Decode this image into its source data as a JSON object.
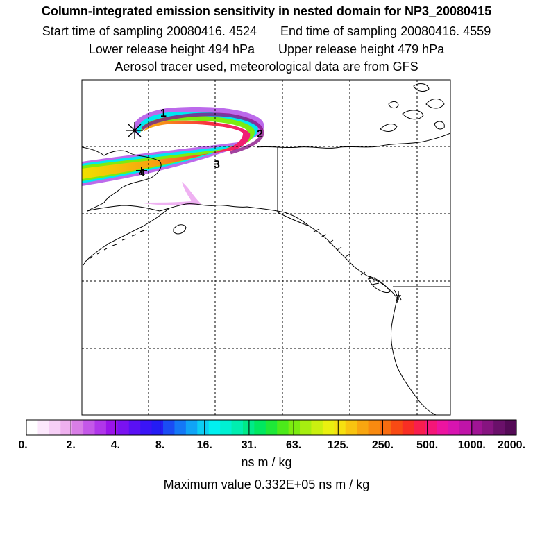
{
  "header": {
    "title": "Column-integrated emission sensitivity in nested domain for NP3_20080415",
    "start_label": "Start time of sampling 20080416.  4524",
    "end_label": "End time of sampling 20080416.  4559",
    "lower_label": "Lower release height  494 hPa",
    "upper_label": "Upper release height  479 hPa",
    "tracer_label": "Aerosol tracer used, meteorological data are from GFS"
  },
  "map": {
    "trajectory_labels": [
      "1",
      "2",
      "3",
      "4"
    ],
    "receptor_marker": "asterisk-cross"
  },
  "colorbar": {
    "ticks": [
      "0.",
      "2.",
      "4.",
      "8.",
      "16.",
      "31.",
      "63.",
      "125.",
      "250.",
      "500.",
      "1000.",
      "2000."
    ],
    "colors": [
      "#ffffff",
      "#fce8fc",
      "#f6cff6",
      "#eeb0ee",
      "#d87ee6",
      "#c458e8",
      "#b036ea",
      "#9a14ea",
      "#7a12f0",
      "#5a10f4",
      "#3a14f6",
      "#241cf4",
      "#1a4cf4",
      "#1478f6",
      "#10a4f6",
      "#0ccef4",
      "#00f0f0",
      "#00f0d2",
      "#00eeb0",
      "#00ea88",
      "#00e860",
      "#1ee838",
      "#4cea1a",
      "#7cec10",
      "#a6ee10",
      "#caf010",
      "#eaf010",
      "#f6e010",
      "#f8c410",
      "#f8a610",
      "#f88a10",
      "#f86c10",
      "#f84a14",
      "#f82e24",
      "#f81e4e",
      "#f41678",
      "#ec14a0",
      "#d814b0",
      "#c014a8",
      "#a01494",
      "#861480",
      "#6a106a",
      "#540a56"
    ]
  },
  "units_label": "ns m / kg",
  "max_label": "Maximum value  0.332E+05 ns m / kg"
}
